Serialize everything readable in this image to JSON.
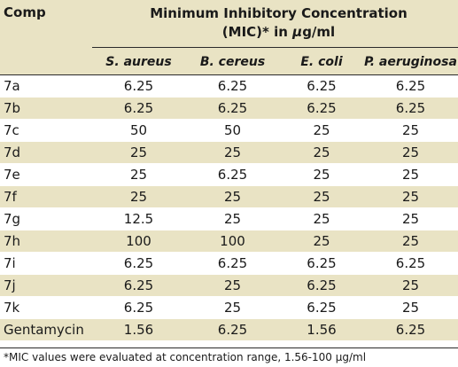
{
  "table": {
    "header": {
      "comp": "Comp",
      "title_line1": "Minimum Inhibitory Concentration",
      "title_line2_prefix": "(MIC)* in ",
      "title_line2_unit_mu": "μ",
      "title_line2_unit_rest": "g/ml",
      "columns": [
        "S. aureus",
        "B. cereus",
        "E. coli",
        "P. aeruginosa"
      ]
    },
    "rows": [
      {
        "comp": "7a",
        "values": [
          "6.25",
          "6.25",
          "6.25",
          "6.25"
        ]
      },
      {
        "comp": "7b",
        "values": [
          "6.25",
          "6.25",
          "6.25",
          "6.25"
        ]
      },
      {
        "comp": "7c",
        "values": [
          "50",
          "50",
          "25",
          "25"
        ]
      },
      {
        "comp": "7d",
        "values": [
          "25",
          "25",
          "25",
          "25"
        ]
      },
      {
        "comp": "7e",
        "values": [
          "25",
          "6.25",
          "25",
          "25"
        ]
      },
      {
        "comp": "7f",
        "values": [
          "25",
          "25",
          "25",
          "25"
        ]
      },
      {
        "comp": "7g",
        "values": [
          "12.5",
          "25",
          "25",
          "25"
        ]
      },
      {
        "comp": "7h",
        "values": [
          "100",
          "100",
          "25",
          "25"
        ]
      },
      {
        "comp": "7i",
        "values": [
          "6.25",
          "6.25",
          "6.25",
          "6.25"
        ]
      },
      {
        "comp": "7j",
        "values": [
          "6.25",
          "25",
          "6.25",
          "25"
        ]
      },
      {
        "comp": "7k",
        "values": [
          "6.25",
          "25",
          "6.25",
          "25"
        ]
      },
      {
        "comp": "Gentamycin",
        "values": [
          "1.56",
          "6.25",
          "1.56",
          "6.25"
        ]
      }
    ],
    "footnote": "*MIC values were evaluated at concentration range, 1.56-100 μg/ml"
  }
}
